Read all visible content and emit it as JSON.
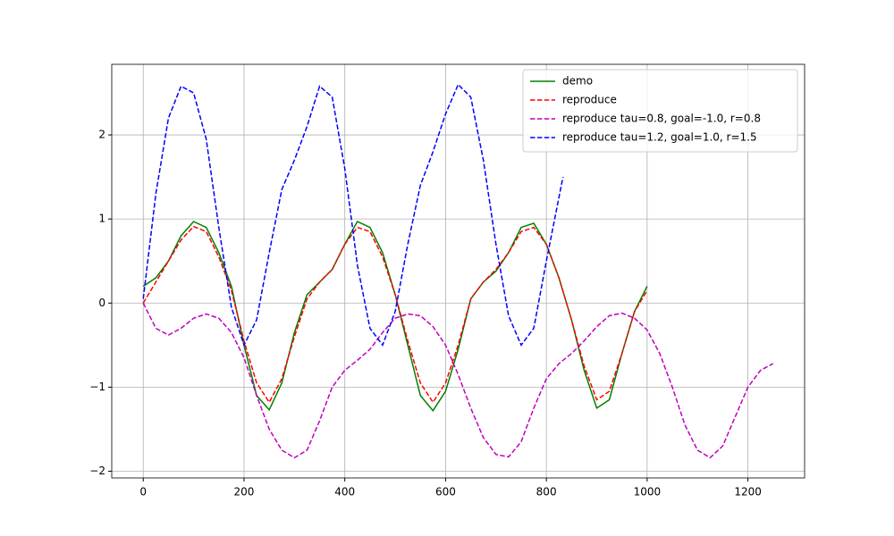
{
  "chart_data": {
    "type": "line",
    "xlim": [
      -62.5,
      1312.5
    ],
    "ylim": [
      -2.08,
      2.84
    ],
    "xticks": [
      0,
      200,
      400,
      600,
      800,
      1000,
      1200
    ],
    "yticks": [
      {
        "value": -2,
        "label": "−2"
      },
      {
        "value": -1,
        "label": "−1"
      },
      0,
      1,
      2
    ],
    "grid": true,
    "legend": "upper right",
    "series": [
      {
        "name": "demo",
        "color": "#008000",
        "dash": "solid",
        "x": [
          0,
          25,
          50,
          75,
          100,
          125,
          150,
          175,
          200,
          225,
          250,
          275,
          300,
          325,
          350,
          375,
          400,
          425,
          450,
          475,
          500,
          525,
          550,
          575,
          600,
          625,
          650,
          675,
          700,
          725,
          750,
          775,
          800,
          825,
          850,
          875,
          900,
          925,
          950,
          975,
          1000
        ],
        "values": [
          0.2,
          0.3,
          0.5,
          0.8,
          0.97,
          0.9,
          0.6,
          0.2,
          -0.5,
          -1.1,
          -1.27,
          -0.95,
          -0.35,
          0.1,
          0.25,
          0.4,
          0.7,
          0.97,
          0.9,
          0.6,
          0.1,
          -0.5,
          -1.1,
          -1.28,
          -1.05,
          -0.55,
          0.05,
          0.25,
          0.38,
          0.6,
          0.9,
          0.95,
          0.7,
          0.3,
          -0.2,
          -0.8,
          -1.25,
          -1.15,
          -0.6,
          -0.1,
          0.2
        ]
      },
      {
        "name": "reproduce",
        "color": "#ff0000",
        "dash": "dashed",
        "x": [
          0,
          25,
          50,
          75,
          100,
          125,
          150,
          175,
          200,
          225,
          250,
          275,
          300,
          325,
          350,
          375,
          400,
          425,
          450,
          475,
          500,
          525,
          550,
          575,
          600,
          625,
          650,
          675,
          700,
          725,
          750,
          775,
          800,
          825,
          850,
          875,
          900,
          925,
          950,
          975,
          1000
        ],
        "values": [
          0.0,
          0.25,
          0.5,
          0.75,
          0.91,
          0.85,
          0.55,
          0.15,
          -0.45,
          -0.95,
          -1.18,
          -0.9,
          -0.4,
          0.05,
          0.25,
          0.4,
          0.7,
          0.9,
          0.85,
          0.55,
          0.1,
          -0.45,
          -0.95,
          -1.18,
          -0.95,
          -0.5,
          0.05,
          0.25,
          0.4,
          0.6,
          0.85,
          0.9,
          0.7,
          0.3,
          -0.2,
          -0.75,
          -1.15,
          -1.05,
          -0.6,
          -0.1,
          0.15
        ]
      },
      {
        "name": "reproduce tau=0.8, goal=-1.0, r=0.8",
        "color": "#bf00bf",
        "dash": "dashed",
        "x": [
          0,
          25,
          50,
          75,
          100,
          125,
          150,
          175,
          200,
          225,
          250,
          275,
          300,
          325,
          350,
          375,
          400,
          425,
          450,
          475,
          500,
          525,
          550,
          575,
          600,
          625,
          650,
          675,
          700,
          725,
          750,
          775,
          800,
          825,
          850,
          875,
          900,
          925,
          950,
          975,
          1000,
          1025,
          1050,
          1075,
          1100,
          1125,
          1150,
          1175,
          1200,
          1225,
          1250
        ],
        "values": [
          0.0,
          -0.3,
          -0.38,
          -0.3,
          -0.18,
          -0.13,
          -0.18,
          -0.35,
          -0.65,
          -1.1,
          -1.5,
          -1.75,
          -1.84,
          -1.75,
          -1.4,
          -1.0,
          -0.8,
          -0.68,
          -0.55,
          -0.35,
          -0.18,
          -0.13,
          -0.15,
          -0.28,
          -0.5,
          -0.85,
          -1.25,
          -1.6,
          -1.8,
          -1.83,
          -1.65,
          -1.25,
          -0.9,
          -0.72,
          -0.6,
          -0.45,
          -0.28,
          -0.15,
          -0.12,
          -0.18,
          -0.32,
          -0.6,
          -1.0,
          -1.45,
          -1.75,
          -1.84,
          -1.7,
          -1.35,
          -1.0,
          -0.8,
          -0.72
        ]
      },
      {
        "name": "reproduce tau=1.2, goal=1.0, r=1.5",
        "color": "#0000ff",
        "dash": "dashed",
        "x": [
          0,
          25,
          50,
          75,
          100,
          125,
          150,
          175,
          200,
          225,
          250,
          275,
          300,
          325,
          350,
          375,
          400,
          425,
          450,
          475,
          500,
          525,
          550,
          575,
          600,
          625,
          650,
          675,
          700,
          725,
          750,
          775,
          800,
          833
        ],
        "values": [
          0.05,
          1.3,
          2.2,
          2.58,
          2.5,
          1.95,
          0.9,
          -0.05,
          -0.5,
          -0.2,
          0.6,
          1.35,
          1.7,
          2.1,
          2.58,
          2.45,
          1.6,
          0.45,
          -0.3,
          -0.5,
          -0.1,
          0.7,
          1.4,
          1.8,
          2.25,
          2.6,
          2.45,
          1.7,
          0.7,
          -0.15,
          -0.5,
          -0.3,
          0.5,
          1.5
        ]
      }
    ]
  }
}
